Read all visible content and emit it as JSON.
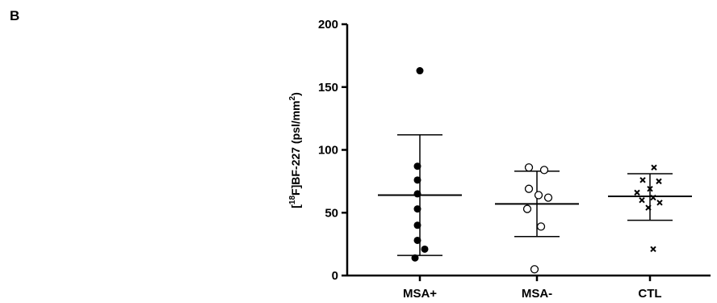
{
  "panel_label": "B",
  "chart_data": {
    "type": "scatter",
    "ylabel": {
      "bracket_open": "[",
      "superscript": "18",
      "main": "F]BF-227 (psl/mm",
      "unit_sup": "2",
      "close": ")"
    },
    "ylim": [
      0,
      200
    ],
    "yticks": [
      "0",
      "50",
      "100",
      "150",
      "200"
    ],
    "categories": [
      "MSA+",
      "MSA-",
      "CTL"
    ],
    "series": [
      {
        "category": "MSA+",
        "marker": "filled-circle",
        "values": [
          163,
          87,
          76,
          65,
          53,
          40,
          28,
          21,
          14
        ],
        "mean": 64,
        "sd_upper": 112,
        "sd_lower": 16
      },
      {
        "category": "MSA-",
        "marker": "open-circle",
        "values": [
          86,
          84,
          69,
          64,
          62,
          53,
          39,
          5
        ],
        "mean": 57,
        "sd_upper": 83,
        "sd_lower": 31
      },
      {
        "category": "CTL",
        "marker": "x",
        "values": [
          86,
          76,
          75,
          69,
          66,
          62,
          60,
          58,
          54,
          21
        ],
        "mean": 63,
        "sd_upper": 81,
        "sd_lower": 44
      }
    ]
  }
}
